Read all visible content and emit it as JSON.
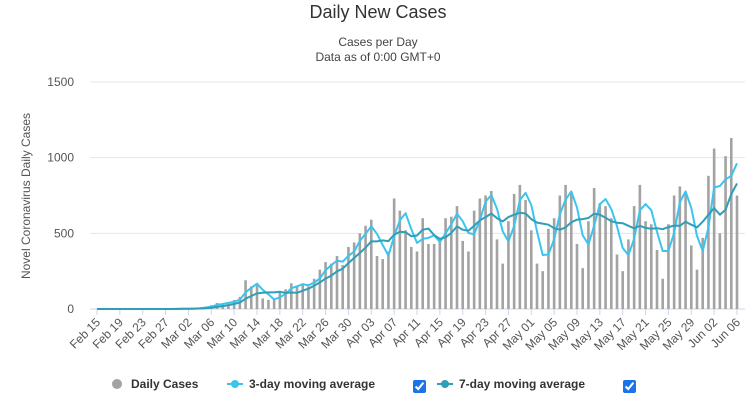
{
  "chart_data": {
    "type": "bar",
    "title": "Daily New Cases",
    "subtitle": [
      "Cases per Day",
      "Data as of 0:00 GMT+0"
    ],
    "y_label": "Novel Coronavirus Daily Cases",
    "categories": [
      "Feb 15",
      null,
      null,
      null,
      "Feb 19",
      null,
      null,
      null,
      "Feb 23",
      null,
      null,
      null,
      "Feb 27",
      null,
      null,
      null,
      "Mar 02",
      null,
      null,
      null,
      "Mar 06",
      null,
      null,
      null,
      "Mar 10",
      null,
      null,
      null,
      "Mar 14",
      null,
      null,
      null,
      "Mar 18",
      null,
      null,
      null,
      "Mar 22",
      null,
      null,
      null,
      "Mar 26",
      null,
      null,
      null,
      "Mar 30",
      null,
      null,
      null,
      "Apr 03",
      null,
      null,
      null,
      "Apr 07",
      null,
      null,
      null,
      "Apr 11",
      null,
      null,
      null,
      "Apr 15",
      null,
      null,
      null,
      "Apr 19",
      null,
      null,
      null,
      "Apr 23",
      null,
      null,
      null,
      "Apr 27",
      null,
      null,
      null,
      "May 01",
      null,
      null,
      null,
      "May 05",
      null,
      null,
      null,
      "May 09",
      null,
      null,
      null,
      "May 13",
      null,
      null,
      null,
      "May 17",
      null,
      null,
      null,
      "May 21",
      null,
      null,
      null,
      "May 25",
      null,
      null,
      null,
      "May 29",
      null,
      null,
      null,
      "Jun 02",
      null,
      null,
      null,
      "Jun 06"
    ],
    "series": [
      {
        "name": "Daily Cases",
        "type": "column",
        "color": "#a3a3a3",
        "values": [
          0,
          0,
          0,
          0,
          0,
          0,
          0,
          0,
          0,
          0,
          0,
          0,
          0,
          1,
          1,
          2,
          3,
          5,
          8,
          15,
          25,
          40,
          35,
          45,
          60,
          80,
          190,
          150,
          160,
          70,
          60,
          60,
          110,
          130,
          170,
          150,
          170,
          150,
          200,
          260,
          310,
          300,
          350,
          290,
          410,
          440,
          500,
          550,
          590,
          350,
          330,
          380,
          730,
          650,
          520,
          410,
          380,
          600,
          430,
          430,
          470,
          600,
          610,
          680,
          450,
          380,
          650,
          730,
          750,
          780,
          460,
          300,
          580,
          760,
          820,
          720,
          520,
          300,
          250,
          530,
          600,
          750,
          820,
          760,
          430,
          270,
          580,
          800,
          700,
          680,
          600,
          360,
          250,
          460,
          680,
          820,
          580,
          560,
          390,
          200,
          560,
          750,
          810,
          770,
          420,
          260,
          470,
          880,
          1060,
          500,
          1010,
          1130,
          750
        ]
      },
      {
        "name": "3-day moving average",
        "type": "line",
        "color": "#3cc4ef",
        "values": [
          0,
          0,
          0,
          0,
          0,
          0,
          0,
          0,
          0,
          0,
          0,
          0,
          0,
          0,
          1,
          1,
          2,
          3,
          5,
          9,
          16,
          27,
          33,
          40,
          47,
          62,
          110,
          140,
          167,
          127,
          97,
          63,
          77,
          100,
          137,
          150,
          163,
          157,
          173,
          203,
          257,
          290,
          320,
          313,
          350,
          380,
          450,
          497,
          547,
          497,
          423,
          353,
          480,
          587,
          633,
          527,
          437,
          463,
          470,
          487,
          443,
          500,
          560,
          630,
          580,
          503,
          493,
          587,
          710,
          753,
          663,
          513,
          447,
          547,
          720,
          767,
          687,
          513,
          357,
          360,
          460,
          627,
          723,
          777,
          670,
          487,
          427,
          550,
          693,
          727,
          660,
          547,
          403,
          357,
          463,
          653,
          693,
          653,
          510,
          383,
          383,
          503,
          707,
          777,
          667,
          483,
          383,
          537,
          803,
          813,
          857,
          880,
          963
        ]
      },
      {
        "name": "7-day moving average",
        "type": "line",
        "color": "#2f9fb8",
        "values": [
          0,
          0,
          0,
          0,
          0,
          0,
          0,
          0,
          0,
          0,
          0,
          0,
          0,
          0,
          0,
          1,
          1,
          2,
          3,
          5,
          8,
          14,
          19,
          25,
          33,
          43,
          68,
          86,
          103,
          108,
          110,
          110,
          114,
          106,
          109,
          107,
          121,
          134,
          154,
          176,
          201,
          220,
          249,
          266,
          303,
          337,
          371,
          406,
          447,
          447,
          453,
          449,
          490,
          511,
          507,
          481,
          486,
          524,
          531,
          489,
          463,
          474,
          503,
          546,
          524,
          517,
          549,
          586,
          607,
          631,
          600,
          579,
          607,
          623,
          636,
          631,
          594,
          571,
          564,
          557,
          534,
          524,
          539,
          573,
          591,
          594,
          601,
          630,
          623,
          603,
          580,
          570,
          567,
          550,
          533,
          550,
          536,
          530,
          534,
          527,
          541,
          551,
          550,
          577,
          557,
          539,
          577,
          623,
          667,
          623,
          657,
          759,
          829
        ]
      }
    ],
    "ylim": [
      0,
      1500
    ],
    "yticks": [
      0,
      500,
      1000,
      1500
    ],
    "grid": true
  }
}
